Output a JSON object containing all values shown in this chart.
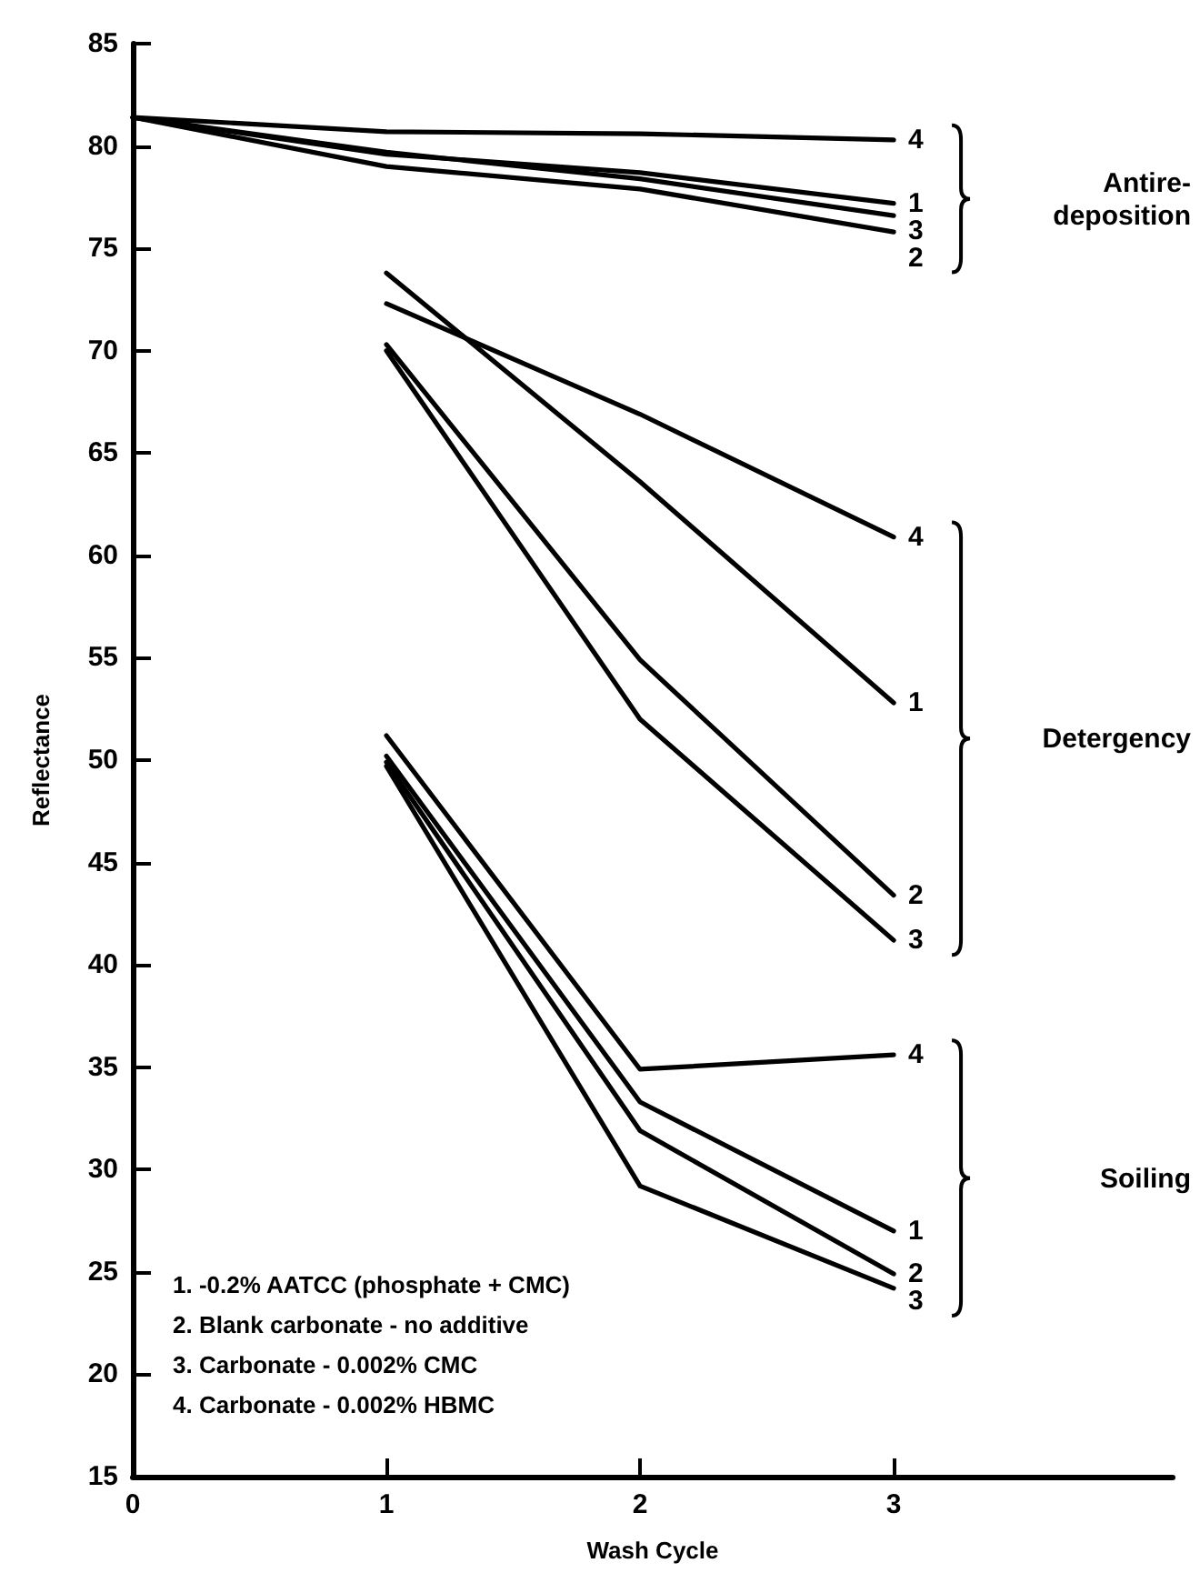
{
  "chart_data": {
    "type": "line",
    "xlabel": "Wash Cycle",
    "ylabel": "Reflectance",
    "xlim": [
      0,
      4.1
    ],
    "xticks": [
      0,
      1,
      2,
      3
    ],
    "ylim": [
      15,
      85
    ],
    "yticks": [
      15,
      20,
      25,
      30,
      35,
      40,
      45,
      50,
      55,
      60,
      65,
      70,
      75,
      80,
      85
    ],
    "grid": false,
    "legend": false,
    "marker": "none",
    "line_style": "solid",
    "series": [
      {
        "name": "4",
        "color": "#000000",
        "x": [
          0,
          1,
          2,
          3
        ],
        "values": [
          81.4,
          80.7,
          80.6,
          80.3
        ]
      },
      {
        "name": "1",
        "color": "#000000",
        "x": [
          0,
          1,
          2,
          3
        ],
        "values": [
          81.4,
          79.6,
          78.7,
          77.2
        ]
      },
      {
        "name": "3",
        "color": "#000000",
        "x": [
          0,
          1,
          2,
          3
        ],
        "values": [
          81.4,
          79.7,
          78.4,
          76.6
        ]
      },
      {
        "name": "2",
        "color": "#000000",
        "x": [
          0,
          1,
          2,
          3
        ],
        "values": [
          81.4,
          79.0,
          77.9,
          75.8
        ]
      },
      {
        "name": "4",
        "color": "#000000",
        "x": [
          1,
          2,
          3
        ],
        "values": [
          72.3,
          66.9,
          60.9
        ]
      },
      {
        "name": "1",
        "color": "#000000",
        "x": [
          1,
          2,
          3
        ],
        "values": [
          73.8,
          63.6,
          52.8
        ]
      },
      {
        "name": "2",
        "color": "#000000",
        "x": [
          1,
          2,
          3
        ],
        "values": [
          70.3,
          54.9,
          43.4
        ]
      },
      {
        "name": "3",
        "color": "#000000",
        "x": [
          1,
          2,
          3
        ],
        "values": [
          70.0,
          52.0,
          41.2
        ]
      },
      {
        "name": "4",
        "color": "#000000",
        "x": [
          1,
          2,
          3
        ],
        "values": [
          51.2,
          34.9,
          35.6
        ]
      },
      {
        "name": "1",
        "color": "#000000",
        "x": [
          1,
          2,
          3
        ],
        "values": [
          50.2,
          33.3,
          27.0
        ]
      },
      {
        "name": "2",
        "color": "#000000",
        "x": [
          1,
          2,
          3
        ],
        "values": [
          49.9,
          31.9,
          24.9
        ]
      },
      {
        "name": "3",
        "color": "#000000",
        "x": [
          1,
          2,
          3
        ],
        "values": [
          49.7,
          29.2,
          24.2
        ]
      }
    ],
    "annotations": [
      "Antire-\ndeposition",
      "Detergency",
      "Soiling",
      "1. -0.2% AATCC (phosphate + CMC)",
      "2. Blank carbonate - no additive",
      "3. Carbonate - 0.002% CMC",
      "4. Carbonate - 0.002% HBMC"
    ]
  }
}
